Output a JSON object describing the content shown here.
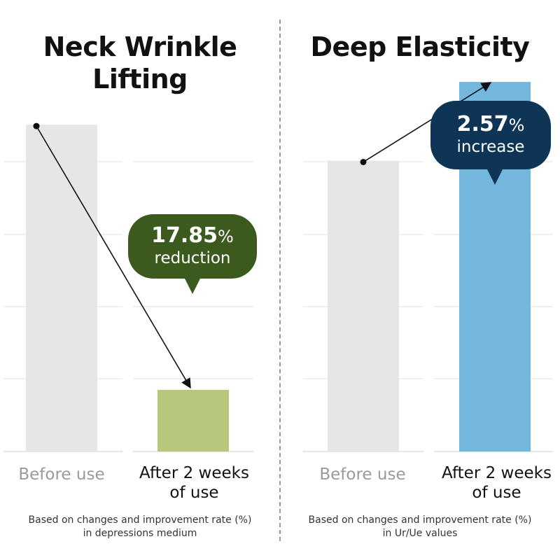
{
  "chart_data": [
    {
      "type": "bar",
      "title_lines": [
        "Neck Wrinkle",
        "Lifting"
      ],
      "categories": [
        "Before use",
        "After 2 weeks of use"
      ],
      "category_lines": [
        [
          "Before use"
        ],
        [
          "After 2 weeks",
          "of use"
        ]
      ],
      "values": [
        100,
        82.15
      ],
      "ylim": [
        78,
        105
      ],
      "grid": true,
      "colors": [
        "#e6e6e6",
        "#b7c77b"
      ],
      "annotation": {
        "value": "17.85",
        "unit": "%",
        "label": "reduction",
        "color": "#3c5a1e"
      },
      "note_lines": [
        "Based on changes and improvement rate (%)",
        "in depressions medium"
      ]
    },
    {
      "type": "bar",
      "title_lines": [
        "Deep Elasticity"
      ],
      "categories": [
        "Before use",
        "After 2 weeks of use"
      ],
      "category_lines": [
        [
          "Before use"
        ],
        [
          "After 2 weeks",
          "of use"
        ]
      ],
      "values": [
        100,
        102.57
      ],
      "ylim": [
        90.5,
        103.6
      ],
      "grid": true,
      "colors": [
        "#e6e6e6",
        "#74b7dc"
      ],
      "annotation": {
        "value": "2.57",
        "unit": "%",
        "label": "increase",
        "color": "#0f3556"
      },
      "note_lines": [
        "Based on changes and improvement rate (%)",
        "in Ur/Ue values"
      ]
    }
  ]
}
